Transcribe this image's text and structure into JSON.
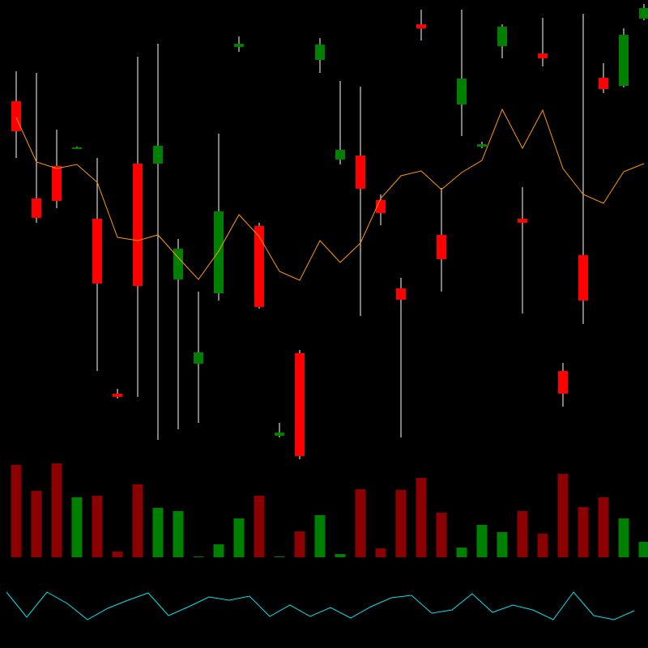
{
  "chart_data": [
    {
      "type": "candlestick",
      "up_color": "#008000",
      "down_color": "#ff0000",
      "wick_color": "#ffffff",
      "ylim": [
        0,
        800
      ],
      "open": [
        675,
        555,
        595,
        618,
        530,
        314,
        598,
        598,
        455,
        351,
        438,
        742,
        521,
        262,
        364,
        726,
        603,
        608,
        553,
        444,
        770,
        510,
        671,
        619,
        743,
        530,
        734,
        342,
        485,
        704,
        694,
        777
      ],
      "high": [
        712,
        710,
        640,
        619,
        605,
        320,
        730,
        746,
        505,
        440,
        635,
        755,
        525,
        278,
        368,
        753,
        700,
        693,
        560,
        457,
        788,
        568,
        788,
        625,
        770,
        569,
        778,
        352,
        783,
        722,
        765,
        795
      ],
      "low": [
        605,
        525,
        543,
        617,
        342,
        308,
        310,
        257,
        270,
        278,
        429,
        736,
        419,
        260,
        233,
        710,
        597,
        410,
        522,
        260,
        750,
        440,
        632,
        617,
        728,
        413,
        718,
        298,
        400,
        685,
        692,
        775
      ],
      "close": [
        638,
        531,
        552,
        618,
        450,
        310,
        447,
        620,
        493,
        365,
        539,
        746,
        421,
        266,
        237,
        745,
        615,
        567,
        537,
        430,
        765,
        480,
        703,
        622,
        767,
        525,
        728,
        314,
        429,
        690,
        757,
        790
      ],
      "overlay": {
        "color": "#ff9900",
        "values": [
          655,
          600,
          592,
          597,
          575,
          507,
          503,
          510,
          482,
          455,
          490,
          535,
          508,
          465,
          454,
          503,
          476,
          500,
          555,
          583,
          589,
          566,
          587,
          602,
          665,
          617,
          664,
          592,
          560,
          549,
          588,
          598
        ]
      }
    },
    {
      "type": "bar",
      "ylim": [
        0,
        120
      ],
      "up_color": "#008000",
      "down_color": "#8b0000",
      "values": [
        114,
        82,
        116,
        74,
        76,
        7,
        90,
        61,
        57,
        1,
        16,
        48,
        76,
        1,
        32,
        52,
        4,
        84,
        11,
        83,
        98,
        55,
        12,
        40,
        31,
        57,
        29,
        103,
        62,
        74,
        48,
        19
      ]
    },
    {
      "type": "line",
      "ylim": [
        0,
        100
      ],
      "color": "#00e5ee",
      "values": [
        69,
        38,
        69,
        55,
        35,
        49,
        59,
        68,
        40,
        51,
        63,
        59,
        64,
        39,
        53,
        39,
        50,
        37,
        51,
        62,
        65,
        43,
        47,
        67,
        44,
        53,
        47,
        35,
        69,
        40,
        35,
        46
      ]
    }
  ]
}
